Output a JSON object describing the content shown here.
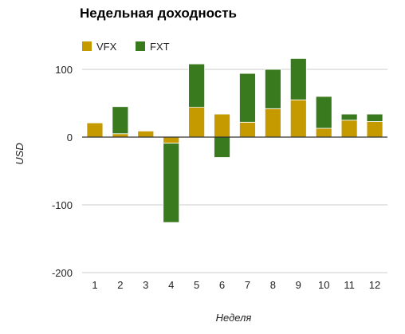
{
  "chart_data": {
    "type": "bar",
    "stacked": true,
    "title": "Недельная доходность",
    "xlabel": "Неделя",
    "ylabel": "USD",
    "categories": [
      "1",
      "2",
      "3",
      "4",
      "5",
      "6",
      "7",
      "8",
      "9",
      "10",
      "11",
      "12"
    ],
    "series": [
      {
        "name": "VFX",
        "color": "#c49a00",
        "values": [
          21,
          5,
          9,
          -9,
          44,
          34,
          22,
          42,
          55,
          13,
          25,
          23
        ]
      },
      {
        "name": "FXT",
        "color": "#3a7a1e",
        "values": [
          0,
          40,
          0,
          -117,
          64,
          -30,
          72,
          58,
          61,
          47,
          9,
          11
        ]
      }
    ],
    "ylim": [
      -200,
      130
    ],
    "yticks": [
      100,
      0,
      -100,
      -200
    ],
    "grid": true,
    "legend": "top-left"
  }
}
